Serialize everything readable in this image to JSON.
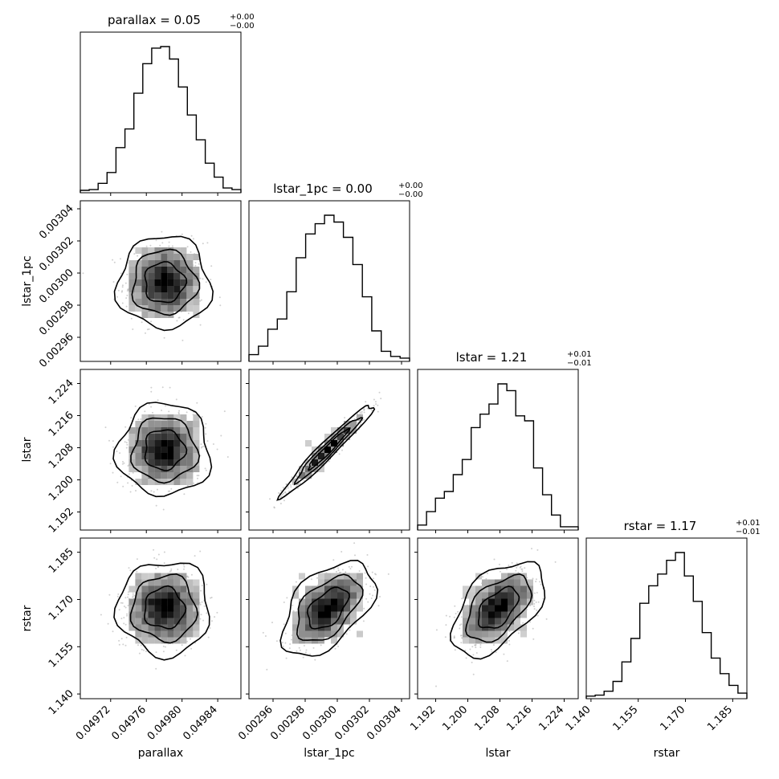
{
  "chart_data": {
    "type": "corner",
    "parameters": [
      {
        "name": "parallax",
        "title": "parallax = 0.05",
        "sup": "+0.00",
        "sub": "−0.00",
        "range": [
          0.049686,
          0.049866
        ],
        "ticks": [
          "0.04972",
          "0.04976",
          "0.04980",
          "0.04984"
        ],
        "median": 0.04978,
        "sigma": 2.25e-05
      },
      {
        "name": "lstar_1pc",
        "title": "lstar_1pc = 0.00",
        "sup": "+0.00",
        "sub": "−0.00",
        "range": [
          0.002945,
          0.003045
        ],
        "ticks": [
          "0.00296",
          "0.00298",
          "0.00300",
          "0.00302",
          "0.00304"
        ],
        "median": 0.002994,
        "sigma": 1.25e-05
      },
      {
        "name": "lstar",
        "title": "lstar = 1.21",
        "sup": "+0.01",
        "sub": "−0.01",
        "range": [
          1.1875,
          1.2275
        ],
        "ticks": [
          "1.192",
          "1.200",
          "1.208",
          "1.216",
          "1.224"
        ],
        "median": 1.2075,
        "sigma": 0.005
      },
      {
        "name": "rstar",
        "title": "rstar = 1.17",
        "sup": "+0.01",
        "sub": "−0.01",
        "range": [
          1.1385,
          1.1895
        ],
        "ticks": [
          "1.140",
          "1.155",
          "1.170",
          "1.185"
        ],
        "median": 1.1672,
        "sigma": 0.0065
      }
    ],
    "histograms": [
      [
        0.5,
        1,
        5,
        12,
        28,
        40,
        63,
        82,
        92,
        93,
        85,
        67,
        49,
        33,
        18,
        9,
        2,
        1
      ],
      [
        3,
        8,
        18,
        24,
        40,
        60,
        74,
        80,
        85,
        81,
        72,
        56,
        37,
        17,
        5,
        2,
        1
      ],
      [
        2,
        10,
        18,
        22,
        32,
        41,
        60,
        68,
        74,
        86,
        82,
        67,
        64,
        36,
        20,
        8,
        1,
        1
      ],
      [
        0.5,
        1,
        3,
        8,
        18,
        30,
        48,
        57,
        63,
        70,
        74,
        62,
        49,
        33,
        20,
        12,
        6,
        2
      ]
    ],
    "correlations": [
      [
        1,
        0,
        0,
        0
      ],
      [
        0,
        1,
        0.97,
        0.5
      ],
      [
        0,
        0.97,
        1,
        0.52
      ],
      [
        0,
        0.5,
        0.52,
        1
      ]
    ],
    "grid": false,
    "legend": "none"
  }
}
